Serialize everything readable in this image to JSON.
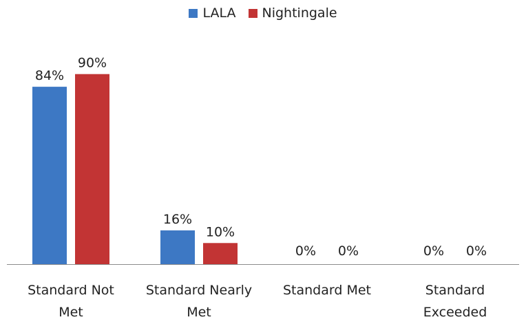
{
  "chart_data": {
    "type": "bar",
    "categories": [
      [
        "Standard Not",
        "Met"
      ],
      [
        "Standard Nearly",
        "Met"
      ],
      [
        "Standard Met"
      ],
      [
        "Standard",
        "Exceeded"
      ]
    ],
    "series": [
      {
        "name": "LALA",
        "values": [
          84,
          16,
          0,
          0
        ],
        "labels": [
          "84%",
          "16%",
          "0%",
          "0%"
        ],
        "color": "#3d78c4"
      },
      {
        "name": "Nightingale",
        "values": [
          90,
          10,
          0,
          0
        ],
        "labels": [
          "90%",
          "10%",
          "0%",
          "0%"
        ],
        "color": "#c23434"
      }
    ],
    "ylim": [
      0,
      100
    ],
    "grid": false,
    "legend_position": "top"
  }
}
